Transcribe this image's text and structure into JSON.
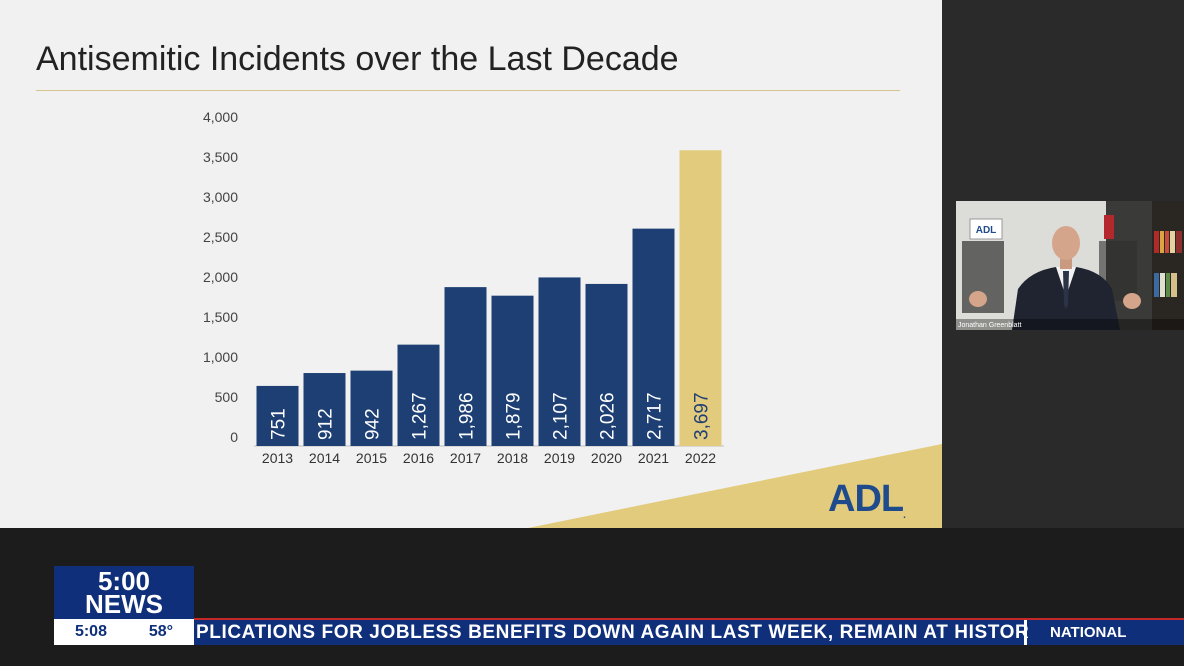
{
  "slide": {
    "title": "Antisemitic Incidents over the Last Decade",
    "logo_text": "ADL"
  },
  "chart_data": {
    "type": "bar",
    "title": "Antisemitic Incidents over the Last Decade",
    "categories": [
      "2013",
      "2014",
      "2015",
      "2016",
      "2017",
      "2018",
      "2019",
      "2020",
      "2021",
      "2022"
    ],
    "values": [
      751,
      912,
      942,
      1267,
      1986,
      1879,
      2107,
      2026,
      2717,
      3697
    ],
    "data_labels": [
      "751",
      "912",
      "942",
      "1,267",
      "1,986",
      "1,879",
      "2,107",
      "2,026",
      "2,717",
      "3,697"
    ],
    "yticks": [
      "0",
      "500",
      "1,000",
      "1,500",
      "2,000",
      "2,500",
      "3,000",
      "3,500",
      "4,000"
    ],
    "ylim": [
      0,
      4000
    ],
    "xlabel": "",
    "ylabel": "",
    "grid": false,
    "legend": "none",
    "colors": {
      "default": "#1e3f73",
      "highlight": "#e2cb7c",
      "highlight_category": "2022"
    }
  },
  "webcam": {
    "name_tag": "Jonathan Greenblatt",
    "wall_logo": "ADL"
  },
  "lower_third": {
    "show_time": "5:00",
    "show_label": "NEWS",
    "clock": "5:08",
    "temperature": "58°",
    "ticker": "PLICATIONS FOR JOBLESS BENEFITS DOWN AGAIN LAST WEEK, REMAIN AT HISTOR",
    "section": "NATIONAL"
  },
  "colors": {
    "ticker_blue": "#0f2f7a",
    "accent_red": "#c62828",
    "gold": "#e2cb7c",
    "navy": "#1e3f73"
  }
}
